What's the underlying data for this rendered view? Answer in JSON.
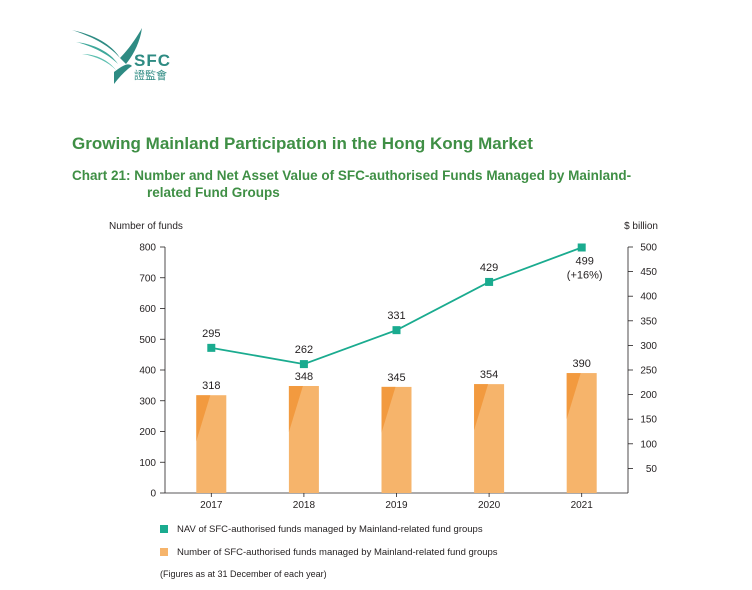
{
  "logo": {
    "name": "SFC",
    "chinese": "證監會"
  },
  "heading": "Growing Mainland Participation in the Hong Kong Market",
  "chart_title_line1": "Chart 21: Number and Net Asset Value of SFC-authorised Funds Managed by Mainland-",
  "chart_title_line2": "related Fund Groups",
  "note": "(Figures as at 31 December of each year)",
  "colors": {
    "nav_line": "#1aab8f",
    "bar": "#f6b46b",
    "bar_shade": "#f29a3f",
    "heading": "#3f8f45"
  },
  "chart_data": {
    "type": "bar+line",
    "categories": [
      "2017",
      "2018",
      "2019",
      "2020",
      "2021"
    ],
    "y_left": {
      "label": "Number of funds",
      "min": 0,
      "max": 800,
      "ticks": [
        0,
        100,
        200,
        300,
        400,
        500,
        600,
        700,
        800
      ]
    },
    "y_right": {
      "label": "$ billion",
      "min": 0,
      "max": 500,
      "ticks": [
        50,
        100,
        150,
        200,
        250,
        300,
        350,
        400,
        450,
        500
      ]
    },
    "series": [
      {
        "name": "NAV of SFC-authorised funds managed by Mainland-related fund groups",
        "type": "line",
        "axis": "right",
        "values": [
          295,
          262,
          331,
          429,
          499
        ],
        "labels": [
          "295",
          "262",
          "331",
          "429",
          "499"
        ],
        "annotations": [
          "",
          "",
          "",
          "",
          "(+16%)"
        ]
      },
      {
        "name": "Number of SFC-authorised funds managed by Mainland-related fund groups",
        "type": "bar",
        "axis": "left",
        "values": [
          318,
          348,
          345,
          354,
          390
        ],
        "labels": [
          "318",
          "348",
          "345",
          "354",
          "390"
        ]
      }
    ],
    "legend_position": "bottom",
    "grid": false
  }
}
